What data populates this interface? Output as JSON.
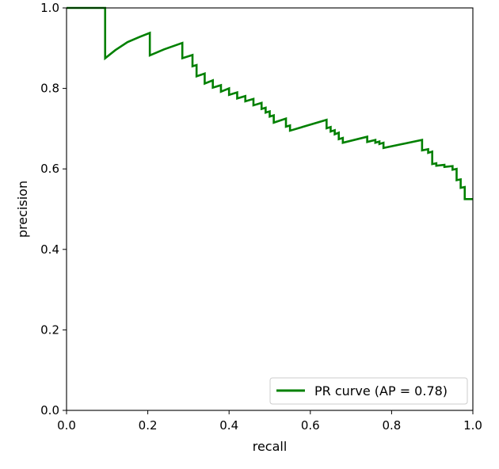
{
  "chart_data": {
    "type": "line",
    "title": "",
    "xlabel": "recall",
    "ylabel": "precision",
    "xlim": [
      0.0,
      1.0
    ],
    "ylim": [
      0.0,
      1.0
    ],
    "xticks": [
      "0.0",
      "0.2",
      "0.4",
      "0.6",
      "0.8",
      "1.0"
    ],
    "yticks": [
      "0.0",
      "0.2",
      "0.4",
      "0.6",
      "0.8",
      "1.0"
    ],
    "grid": false,
    "legend": {
      "position": "lower-right"
    },
    "series": [
      {
        "name": "PR curve (AP = 0.78)",
        "color": "#008000",
        "points": [
          [
            0.0,
            1.0
          ],
          [
            0.095,
            1.0
          ],
          [
            0.095,
            0.875
          ],
          [
            0.12,
            0.895
          ],
          [
            0.15,
            0.915
          ],
          [
            0.18,
            0.928
          ],
          [
            0.205,
            0.938
          ],
          [
            0.205,
            0.882
          ],
          [
            0.24,
            0.897
          ],
          [
            0.285,
            0.913
          ],
          [
            0.285,
            0.875
          ],
          [
            0.31,
            0.883
          ],
          [
            0.31,
            0.855
          ],
          [
            0.32,
            0.858
          ],
          [
            0.32,
            0.83
          ],
          [
            0.34,
            0.837
          ],
          [
            0.34,
            0.812
          ],
          [
            0.36,
            0.82
          ],
          [
            0.36,
            0.802
          ],
          [
            0.38,
            0.808
          ],
          [
            0.38,
            0.792
          ],
          [
            0.4,
            0.8
          ],
          [
            0.4,
            0.784
          ],
          [
            0.42,
            0.79
          ],
          [
            0.42,
            0.775
          ],
          [
            0.44,
            0.781
          ],
          [
            0.44,
            0.768
          ],
          [
            0.46,
            0.774
          ],
          [
            0.46,
            0.758
          ],
          [
            0.48,
            0.764
          ],
          [
            0.48,
            0.749
          ],
          [
            0.49,
            0.752
          ],
          [
            0.49,
            0.74
          ],
          [
            0.5,
            0.743
          ],
          [
            0.5,
            0.73
          ],
          [
            0.51,
            0.733
          ],
          [
            0.51,
            0.715
          ],
          [
            0.54,
            0.725
          ],
          [
            0.54,
            0.705
          ],
          [
            0.55,
            0.708
          ],
          [
            0.55,
            0.695
          ],
          [
            0.64,
            0.722
          ],
          [
            0.64,
            0.701
          ],
          [
            0.65,
            0.704
          ],
          [
            0.65,
            0.693
          ],
          [
            0.66,
            0.696
          ],
          [
            0.66,
            0.686
          ],
          [
            0.67,
            0.69
          ],
          [
            0.67,
            0.674
          ],
          [
            0.68,
            0.677
          ],
          [
            0.68,
            0.665
          ],
          [
            0.74,
            0.68
          ],
          [
            0.74,
            0.667
          ],
          [
            0.76,
            0.672
          ],
          [
            0.76,
            0.665
          ],
          [
            0.77,
            0.668
          ],
          [
            0.77,
            0.662
          ],
          [
            0.78,
            0.665
          ],
          [
            0.78,
            0.652
          ],
          [
            0.875,
            0.672
          ],
          [
            0.875,
            0.646
          ],
          [
            0.89,
            0.649
          ],
          [
            0.89,
            0.64
          ],
          [
            0.9,
            0.643
          ],
          [
            0.9,
            0.612
          ],
          [
            0.91,
            0.614
          ],
          [
            0.91,
            0.608
          ],
          [
            0.93,
            0.61
          ],
          [
            0.93,
            0.605
          ],
          [
            0.95,
            0.607
          ],
          [
            0.95,
            0.598
          ],
          [
            0.96,
            0.6
          ],
          [
            0.96,
            0.572
          ],
          [
            0.97,
            0.574
          ],
          [
            0.97,
            0.553
          ],
          [
            0.98,
            0.555
          ],
          [
            0.98,
            0.525
          ],
          [
            1.0,
            0.525
          ]
        ]
      }
    ]
  }
}
